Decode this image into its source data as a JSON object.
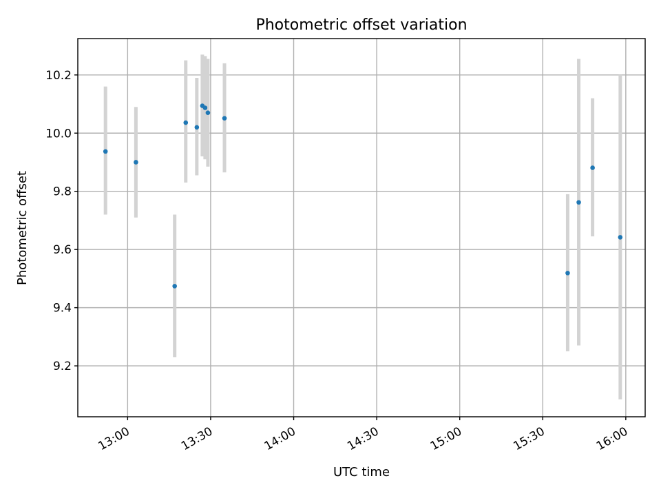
{
  "chart_data": {
    "type": "scatter",
    "title": "Photometric offset variation",
    "xlabel": "UTC time",
    "ylabel": "Photometric offset",
    "x_ticks": [
      "13:00",
      "13:30",
      "14:00",
      "14:30",
      "15:00",
      "15:30",
      "16:00"
    ],
    "y_ticks": [
      "9.2",
      "9.4",
      "9.6",
      "9.8",
      "10.0",
      "10.2"
    ],
    "xlim": [
      "12:42",
      "16:07"
    ],
    "ylim": [
      9.025,
      10.325
    ],
    "grid": true,
    "series": [
      {
        "marker_color": "#1f77b4",
        "errorbar_color": "#d3d3d3",
        "points": [
          {
            "t": "12:52",
            "y": 9.937,
            "lo": 9.72,
            "hi": 10.16
          },
          {
            "t": "13:03",
            "y": 9.9,
            "lo": 9.71,
            "hi": 10.09
          },
          {
            "t": "13:17",
            "y": 9.474,
            "lo": 9.23,
            "hi": 9.72
          },
          {
            "t": "13:21",
            "y": 10.036,
            "lo": 9.83,
            "hi": 10.25
          },
          {
            "t": "13:25",
            "y": 10.02,
            "lo": 9.855,
            "hi": 10.19
          },
          {
            "t": "13:27",
            "y": 10.094,
            "lo": 9.92,
            "hi": 10.27
          },
          {
            "t": "13:28",
            "y": 10.087,
            "lo": 9.91,
            "hi": 10.265
          },
          {
            "t": "13:29",
            "y": 10.07,
            "lo": 9.885,
            "hi": 10.255
          },
          {
            "t": "13:35",
            "y": 10.051,
            "lo": 9.865,
            "hi": 10.24
          },
          {
            "t": "15:39",
            "y": 9.519,
            "lo": 9.25,
            "hi": 9.79
          },
          {
            "t": "15:43",
            "y": 9.762,
            "lo": 9.27,
            "hi": 10.255
          },
          {
            "t": "15:48",
            "y": 9.881,
            "lo": 9.645,
            "hi": 10.12
          },
          {
            "t": "15:58",
            "y": 9.642,
            "lo": 9.085,
            "hi": 10.2
          }
        ]
      }
    ]
  }
}
